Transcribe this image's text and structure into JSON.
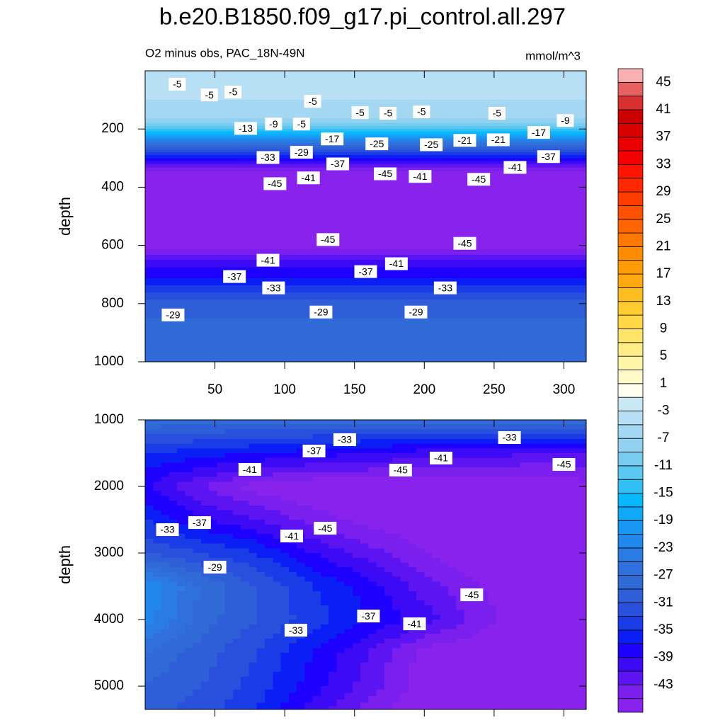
{
  "chart_data": {
    "type": "contour",
    "title": "b.e20.B1850.f09_g17.pi_control.all.297",
    "subtitle": "O2 minus obs, PAC_18N-49N",
    "units": "mmol/m^3",
    "colorbar": {
      "levels": [
        -45,
        -43,
        -41,
        -39,
        -37,
        -35,
        -33,
        -31,
        -29,
        -27,
        -25,
        -23,
        -21,
        -19,
        -17,
        -15,
        -13,
        -11,
        -9,
        -7,
        -5,
        -3,
        -1,
        1,
        3,
        5,
        7,
        9,
        11,
        13,
        15,
        17,
        19,
        21,
        23,
        25,
        27,
        29,
        31,
        33,
        35,
        37,
        39,
        41,
        43,
        45
      ],
      "colors": [
        "#8a22ee",
        "#7a1fee",
        "#5c14f2",
        "#3c0af5",
        "#1e00ff",
        "#0a1ef5",
        "#1a3ce6",
        "#2850dc",
        "#2e5ed8",
        "#306ad6",
        "#3070dc",
        "#2a7ce4",
        "#2088ec",
        "#1898f2",
        "#10a8f8",
        "#08b8fc",
        "#30c0f4",
        "#5ac8f0",
        "#78ccf0",
        "#90d2f0",
        "#a4d8f2",
        "#b8e0f4",
        "#c8e8f4",
        "#fffff0",
        "#fffac8",
        "#fff5a8",
        "#ffee88",
        "#ffe468",
        "#ffd848",
        "#ffcc30",
        "#ffbe20",
        "#ffaa10",
        "#ff9c08",
        "#ff8c00",
        "#ff7800",
        "#ff6400",
        "#ff5000",
        "#ff3c00",
        "#ff2800",
        "#ff1400",
        "#f50000",
        "#e80000",
        "#d80000",
        "#cc0000",
        "#d83030",
        "#e86060",
        "#f8b0b0"
      ],
      "ticks": [
        45,
        41,
        37,
        33,
        29,
        25,
        21,
        17,
        13,
        9,
        5,
        1,
        -3,
        -7,
        -11,
        -15,
        -19,
        -23,
        -27,
        -31,
        -35,
        -39,
        -43
      ]
    },
    "panels": [
      {
        "ylabel": "depth",
        "xlim": [
          0,
          316
        ],
        "ylim": [
          0,
          1000
        ],
        "xticks": [
          50,
          100,
          150,
          200,
          250,
          300
        ],
        "yticks": [
          200,
          400,
          600,
          800,
          1000
        ],
        "profile": {
          "depths": [
            0,
            50,
            100,
            150,
            175,
            200,
            225,
            250,
            275,
            300,
            325,
            350,
            400,
            500,
            600,
            625,
            650,
            675,
            700,
            725,
            750,
            775,
            800,
            850,
            900,
            1000
          ],
          "values": [
            -4,
            -5,
            -5,
            -6,
            -8,
            -13,
            -19,
            -26,
            -32,
            -37,
            -42,
            -46,
            -47,
            -47,
            -46,
            -44,
            -41,
            -39,
            -38,
            -36,
            -34,
            -32,
            -30,
            -29,
            -28,
            -28
          ]
        },
        "contour_labels": [
          {
            "x": 23,
            "y": 46,
            "value": -5
          },
          {
            "x": 46,
            "y": 83,
            "value": -5
          },
          {
            "x": 63,
            "y": 73,
            "value": -5
          },
          {
            "x": 120,
            "y": 105,
            "value": -5
          },
          {
            "x": 154,
            "y": 144,
            "value": -5
          },
          {
            "x": 174,
            "y": 146,
            "value": -5
          },
          {
            "x": 198,
            "y": 141,
            "value": -5
          },
          {
            "x": 252,
            "y": 146,
            "value": -5
          },
          {
            "x": 301,
            "y": 171,
            "value": -9
          },
          {
            "x": 72,
            "y": 198,
            "value": -13
          },
          {
            "x": 92,
            "y": 183,
            "value": -9
          },
          {
            "x": 112,
            "y": 183,
            "value": -5
          },
          {
            "x": 134,
            "y": 234,
            "value": -17
          },
          {
            "x": 166,
            "y": 251,
            "value": -25
          },
          {
            "x": 205,
            "y": 254,
            "value": -25
          },
          {
            "x": 229,
            "y": 239,
            "value": -21
          },
          {
            "x": 253,
            "y": 237,
            "value": -21
          },
          {
            "x": 282,
            "y": 212,
            "value": -17
          },
          {
            "x": 88,
            "y": 298,
            "value": -33
          },
          {
            "x": 112,
            "y": 280,
            "value": -29
          },
          {
            "x": 138,
            "y": 320,
            "value": -37
          },
          {
            "x": 172,
            "y": 354,
            "value": -45
          },
          {
            "x": 197,
            "y": 363,
            "value": -41
          },
          {
            "x": 239,
            "y": 373,
            "value": -45
          },
          {
            "x": 265,
            "y": 332,
            "value": -41
          },
          {
            "x": 289,
            "y": 295,
            "value": -37
          },
          {
            "x": 117,
            "y": 368,
            "value": -41
          },
          {
            "x": 93,
            "y": 388,
            "value": -45
          },
          {
            "x": 131,
            "y": 580,
            "value": -45
          },
          {
            "x": 229,
            "y": 593,
            "value": -45
          },
          {
            "x": 88,
            "y": 651,
            "value": -41
          },
          {
            "x": 64,
            "y": 707,
            "value": -37
          },
          {
            "x": 158,
            "y": 690,
            "value": -37
          },
          {
            "x": 180,
            "y": 663,
            "value": -41
          },
          {
            "x": 92,
            "y": 746,
            "value": -33
          },
          {
            "x": 215,
            "y": 746,
            "value": -33
          },
          {
            "x": 20,
            "y": 839,
            "value": -29
          },
          {
            "x": 126,
            "y": 829,
            "value": -29
          },
          {
            "x": 194,
            "y": 829,
            "value": -29
          }
        ]
      },
      {
        "ylabel": "depth",
        "xlim": [
          0,
          316
        ],
        "ylim": [
          1000,
          5350
        ],
        "yticks": [
          1000,
          2000,
          3000,
          4000,
          5000
        ],
        "field": {
          "x": [
            0,
            40,
            80,
            120,
            160,
            200,
            240,
            280,
            316
          ],
          "depths": [
            1000,
            1500,
            2000,
            2500,
            3000,
            3500,
            4000,
            4500,
            5000,
            5350
          ],
          "values": [
            [
              -27,
              -28,
              -28,
              -28,
              -28,
              -28,
              -28,
              -28,
              -28
            ],
            [
              -35,
              -36,
              -37,
              -38,
              -39,
              -40,
              -40,
              -41,
              -41
            ],
            [
              -39,
              -43,
              -46,
              -47,
              -47,
              -47,
              -47,
              -47,
              -46
            ],
            [
              -35,
              -39,
              -41,
              -44,
              -46,
              -47,
              -47,
              -47,
              -47
            ],
            [
              -31,
              -33,
              -35,
              -39,
              -42,
              -45,
              -47,
              -47,
              -47
            ],
            [
              -21,
              -27,
              -31,
              -35,
              -38,
              -42,
              -45,
              -47,
              -47
            ],
            [
              -22,
              -28,
              -31,
              -34,
              -37,
              -40,
              -44,
              -47,
              -47
            ],
            [
              -27,
              -30,
              -33,
              -37,
              -41,
              -46,
              -47,
              -47,
              -47
            ],
            [
              -29,
              -31,
              -34,
              -38,
              -42,
              -46,
              -47,
              -47,
              -47
            ],
            [
              -30,
              -32,
              -35,
              -40,
              -44,
              -47,
              -47,
              -47,
              -47
            ]
          ]
        },
        "contour_labels": [
          {
            "x": 143,
            "y": 1298,
            "value": -33
          },
          {
            "x": 261,
            "y": 1266,
            "value": -33
          },
          {
            "x": 121,
            "y": 1468,
            "value": -37
          },
          {
            "x": 212,
            "y": 1574,
            "value": -41
          },
          {
            "x": 75,
            "y": 1745,
            "value": -41
          },
          {
            "x": 183,
            "y": 1755,
            "value": -45
          },
          {
            "x": 300,
            "y": 1670,
            "value": -45
          },
          {
            "x": 39,
            "y": 2543,
            "value": -37
          },
          {
            "x": 16,
            "y": 2649,
            "value": -33
          },
          {
            "x": 129,
            "y": 2628,
            "value": -45
          },
          {
            "x": 105,
            "y": 2745,
            "value": -41
          },
          {
            "x": 50,
            "y": 3213,
            "value": -29
          },
          {
            "x": 234,
            "y": 3628,
            "value": -45
          },
          {
            "x": 160,
            "y": 3947,
            "value": -37
          },
          {
            "x": 193,
            "y": 4064,
            "value": -41
          },
          {
            "x": 108,
            "y": 4160,
            "value": -33
          }
        ]
      }
    ]
  }
}
